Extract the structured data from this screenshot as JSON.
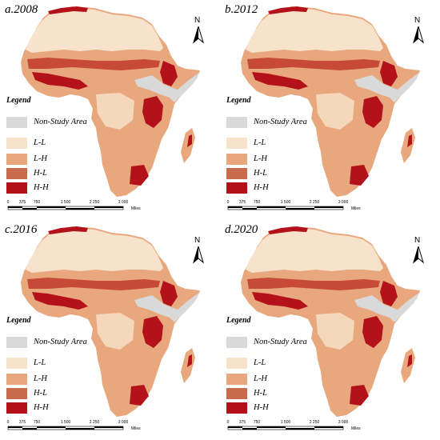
{
  "panels": [
    {
      "title": "a.2008"
    },
    {
      "title": "b.2012"
    },
    {
      "title": "c.2016"
    },
    {
      "title": "d.2020"
    }
  ],
  "north_label": "N",
  "legend": {
    "title": "Legend",
    "items": [
      {
        "label": "Non-Study Area",
        "color": "#d9d9d9"
      },
      {
        "label": "L-L",
        "color": "#f7e3cc"
      },
      {
        "label": "L-H",
        "color": "#e8a77c"
      },
      {
        "label": "H-L",
        "color": "#c86a4c"
      },
      {
        "label": "H-H",
        "color": "#b3121b"
      }
    ]
  },
  "scale_bar": {
    "ticks": [
      "0",
      "375",
      "750",
      "1 500",
      "2 250",
      "3 000"
    ],
    "unit": "Miles"
  },
  "colors": {
    "background": "#ffffff",
    "map_base": "#e8a77c",
    "sahara": "#f7e3cc",
    "hotspot": "#b3121b",
    "non_study": "#d9d9d9"
  }
}
